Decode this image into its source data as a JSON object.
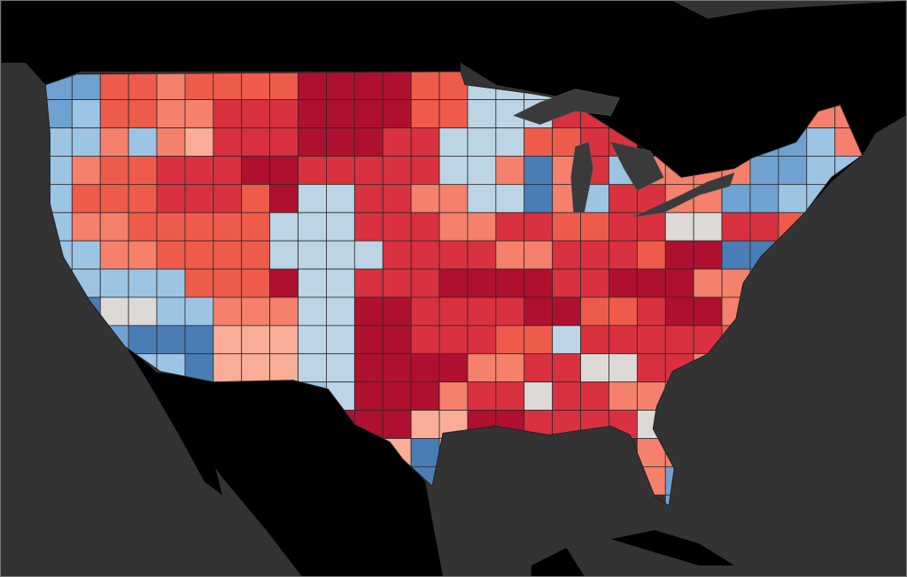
{
  "map": {
    "background_water": "#333333",
    "land_outside": "#000000",
    "region_border": "#2a2a2a",
    "palette": {
      "D": "#b0102f",
      "R": "#d9313f",
      "O": "#ef5b4b",
      "S": "#f5806b",
      "P": "#f9ad97",
      "W": "#dcd9d7",
      "L": "#bcd4e4",
      "B": "#9cc5e4",
      "M": "#6fa2d1",
      "N": "#4a7db4"
    }
  }
}
